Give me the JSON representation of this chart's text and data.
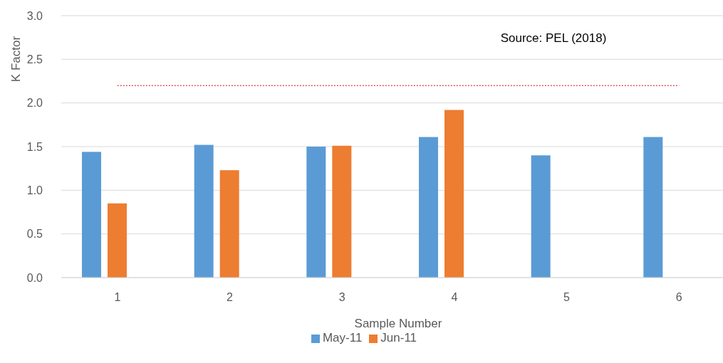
{
  "chart_data": {
    "type": "bar",
    "categories": [
      "1",
      "2",
      "3",
      "4",
      "5",
      "6"
    ],
    "series": [
      {
        "name": "May-11",
        "color": "#5b9bd5",
        "values": [
          1.44,
          1.52,
          1.5,
          1.61,
          1.4,
          1.61
        ]
      },
      {
        "name": "Jun-11",
        "color": "#ed7d31",
        "values": [
          0.85,
          1.23,
          1.51,
          1.92,
          null,
          null
        ]
      }
    ],
    "xlabel": "Sample Number",
    "ylabel": "K Factor",
    "ylim": [
      0,
      3
    ],
    "yticks": [
      {
        "value": 0,
        "label": "0.0"
      },
      0.5,
      {
        "value": 1,
        "label": "1.0"
      },
      1.5,
      {
        "value": 2,
        "label": "2.0"
      },
      2.5,
      {
        "value": 3,
        "label": "3.0"
      }
    ],
    "grid": "y",
    "legend": "bottom",
    "ref_lines": [
      {
        "axis": "y",
        "value": 2.2,
        "color": "#e0525e",
        "line_style": "dotted"
      }
    ],
    "annotations": [
      "Source: PEL (2018)"
    ]
  }
}
